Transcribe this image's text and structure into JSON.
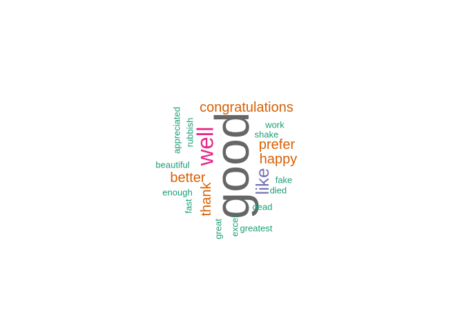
{
  "colors": {
    "teal": "#1b9e77",
    "orange": "#d95f02",
    "pink": "#e7298a",
    "purple": "#7570b3",
    "gray": "#666666"
  },
  "words": [
    {
      "text": "good",
      "color": "#666666",
      "rotated": true
    },
    {
      "text": "well",
      "color": "#e7298a",
      "rotated": true
    },
    {
      "text": "like",
      "color": "#7570b3",
      "rotated": true
    },
    {
      "text": "congratulations",
      "color": "#d95f02",
      "rotated": false
    },
    {
      "text": "prefer",
      "color": "#d95f02",
      "rotated": false
    },
    {
      "text": "happy",
      "color": "#d95f02",
      "rotated": false
    },
    {
      "text": "better",
      "color": "#d95f02",
      "rotated": false
    },
    {
      "text": "thank",
      "color": "#d95f02",
      "rotated": true
    },
    {
      "text": "work",
      "color": "#1b9e77",
      "rotated": false
    },
    {
      "text": "shake",
      "color": "#1b9e77",
      "rotated": false
    },
    {
      "text": "fake",
      "color": "#1b9e77",
      "rotated": false
    },
    {
      "text": "died",
      "color": "#1b9e77",
      "rotated": false
    },
    {
      "text": "dead",
      "color": "#1b9e77",
      "rotated": false
    },
    {
      "text": "greatest",
      "color": "#1b9e77",
      "rotated": false
    },
    {
      "text": "beautiful",
      "color": "#1b9e77",
      "rotated": false
    },
    {
      "text": "enough",
      "color": "#1b9e77",
      "rotated": false
    },
    {
      "text": "appreciated",
      "color": "#1b9e77",
      "rotated": true
    },
    {
      "text": "rubbish",
      "color": "#1b9e77",
      "rotated": true
    },
    {
      "text": "fast",
      "color": "#1b9e77",
      "rotated": true
    },
    {
      "text": "great",
      "color": "#1b9e77",
      "rotated": true
    },
    {
      "text": "excel",
      "color": "#1b9e77",
      "rotated": true
    }
  ]
}
